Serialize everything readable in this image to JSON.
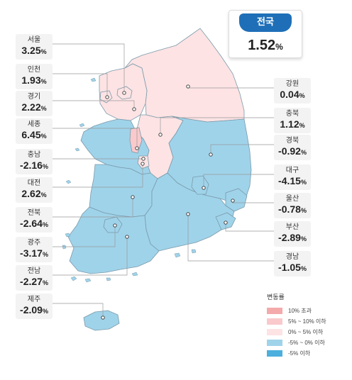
{
  "total": {
    "label": "전국",
    "value": "1.52",
    "unit": "%"
  },
  "regions": [
    {
      "key": "seoul",
      "name": "서울",
      "value": "3.25",
      "unit": "%",
      "cat": "c3"
    },
    {
      "key": "incheon",
      "name": "인천",
      "value": "1.93",
      "unit": "%",
      "cat": "c3"
    },
    {
      "key": "gyeonggi",
      "name": "경기",
      "value": "2.22",
      "unit": "%",
      "cat": "c3"
    },
    {
      "key": "sejong",
      "name": "세종",
      "value": "6.45",
      "unit": "%",
      "cat": "c2"
    },
    {
      "key": "chungnam",
      "name": "충남",
      "value": "-2.16",
      "unit": "%",
      "cat": "c4"
    },
    {
      "key": "daejeon",
      "name": "대전",
      "value": "2.62",
      "unit": "%",
      "cat": "c3"
    },
    {
      "key": "jeonbuk",
      "name": "전북",
      "value": "-2.64",
      "unit": "%",
      "cat": "c4"
    },
    {
      "key": "gwangju",
      "name": "광주",
      "value": "-3.17",
      "unit": "%",
      "cat": "c4"
    },
    {
      "key": "jeonnam",
      "name": "전남",
      "value": "-2.27",
      "unit": "%",
      "cat": "c4"
    },
    {
      "key": "jeju",
      "name": "제주",
      "value": "-2.09",
      "unit": "%",
      "cat": "c4"
    },
    {
      "key": "gangwon",
      "name": "강원",
      "value": "0.04",
      "unit": "%",
      "cat": "c3"
    },
    {
      "key": "chungbuk",
      "name": "충북",
      "value": "1.12",
      "unit": "%",
      "cat": "c3"
    },
    {
      "key": "gyeongbuk",
      "name": "경북",
      "value": "-0.92",
      "unit": "%",
      "cat": "c4"
    },
    {
      "key": "daegu",
      "name": "대구",
      "value": "-4.15",
      "unit": "%",
      "cat": "c4"
    },
    {
      "key": "ulsan",
      "name": "울산",
      "value": "-0.78",
      "unit": "%",
      "cat": "c4"
    },
    {
      "key": "busan",
      "name": "부산",
      "value": "-2.89",
      "unit": "%",
      "cat": "c4"
    },
    {
      "key": "gyeongnam",
      "name": "경남",
      "value": "-1.05",
      "unit": "%",
      "cat": "c4"
    }
  ],
  "legend": {
    "title": "변동률",
    "items": [
      {
        "label": "10% 초과",
        "color": "#f4a9ab"
      },
      {
        "label": "5% ~ 10% 이하",
        "color": "#f9c9cc"
      },
      {
        "label": "0% ~ 5% 이하",
        "color": "#fde3e4"
      },
      {
        "label": "-5% ~ 0% 이하",
        "color": "#9fd3ea"
      },
      {
        "label": "-5% 이하",
        "color": "#4cafdd"
      }
    ]
  },
  "colors": {
    "c2": "#f9c9cc",
    "c3": "#fde3e4",
    "c4": "#9fd3ea",
    "border": "#7a9aaa",
    "leader": "#999999"
  }
}
